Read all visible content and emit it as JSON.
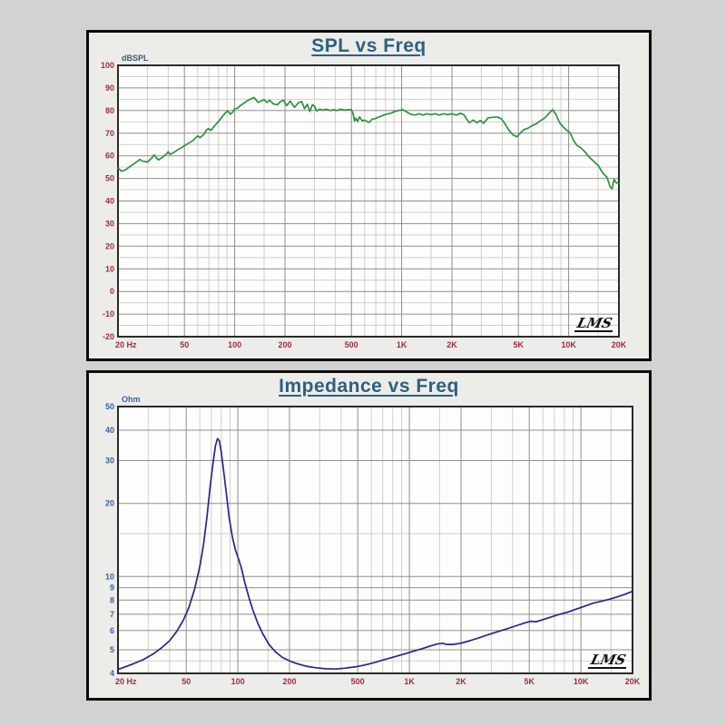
{
  "page": {
    "background_color": "#d2d2d2"
  },
  "chart_data": [
    {
      "type": "line",
      "title": "SPL vs Freq",
      "y_unit_label": "dBSPL",
      "watermark": "LMS",
      "x_scale": "log",
      "y_scale": "linear",
      "xlim": [
        20,
        20000
      ],
      "ylim": [
        -20,
        100
      ],
      "x_ticks": [
        [
          20,
          "20 Hz"
        ],
        [
          50,
          "50"
        ],
        [
          100,
          "100"
        ],
        [
          200,
          "200"
        ],
        [
          500,
          "500"
        ],
        [
          1000,
          "1K"
        ],
        [
          2000,
          "2K"
        ],
        [
          5000,
          "5K"
        ],
        [
          10000,
          "10K"
        ],
        [
          20000,
          "20K"
        ]
      ],
      "x_minor": [
        30,
        40,
        60,
        70,
        80,
        90,
        150,
        300,
        400,
        600,
        700,
        800,
        900,
        1500,
        3000,
        4000,
        6000,
        7000,
        8000,
        9000,
        15000
      ],
      "y_ticks": [
        100,
        90,
        80,
        70,
        60,
        50,
        40,
        30,
        20,
        10,
        0,
        -10,
        -20
      ],
      "y_minor": [
        95,
        85,
        75,
        65,
        55,
        45,
        35,
        25,
        15,
        5,
        -5,
        -15
      ],
      "grid": true,
      "legend": "none",
      "colors": {
        "title": "#2e6080",
        "x_tick": "#9b2c45",
        "y_tick": "#9b2c45",
        "y_unit": "#3a5a77",
        "curve": "#2f9140",
        "grid_major": "#8e8e8e",
        "grid_minor": "#cfcfcf",
        "plot_border": "#2b2b2b",
        "plot_bg": "#fdfdfb"
      },
      "series": [
        {
          "name": "SPL",
          "points": [
            [
              20,
              54.6
            ],
            [
              21,
              53.2
            ],
            [
              22,
              53.6
            ],
            [
              24,
              55.6
            ],
            [
              26,
              57.4
            ],
            [
              27,
              58.4
            ],
            [
              28,
              57.6
            ],
            [
              30,
              57.2
            ],
            [
              32,
              59.2
            ],
            [
              33,
              60.4
            ],
            [
              34,
              59.0
            ],
            [
              35,
              58.2
            ],
            [
              37,
              59.4
            ],
            [
              39,
              60.8
            ],
            [
              40,
              61.8
            ],
            [
              41,
              60.6
            ],
            [
              43,
              61.4
            ],
            [
              45,
              62.4
            ],
            [
              48,
              63.6
            ],
            [
              52,
              65.2
            ],
            [
              56,
              66.6
            ],
            [
              60,
              68.8
            ],
            [
              62,
              68.0
            ],
            [
              65,
              69.2
            ],
            [
              68,
              71.6
            ],
            [
              70,
              72.0
            ],
            [
              72,
              71.2
            ],
            [
              76,
              73.4
            ],
            [
              80,
              75.2
            ],
            [
              84,
              77.2
            ],
            [
              88,
              79.0
            ],
            [
              91,
              79.8
            ],
            [
              94,
              78.4
            ],
            [
              97,
              79.2
            ],
            [
              100,
              80.8
            ],
            [
              104,
              81.0
            ],
            [
              108,
              82.2
            ],
            [
              113,
              83.2
            ],
            [
              118,
              84.2
            ],
            [
              124,
              85.0
            ],
            [
              130,
              85.8
            ],
            [
              134,
              84.8
            ],
            [
              138,
              83.6
            ],
            [
              144,
              84.2
            ],
            [
              150,
              84.8
            ],
            [
              156,
              83.6
            ],
            [
              162,
              84.6
            ],
            [
              170,
              83.0
            ],
            [
              180,
              82.6
            ],
            [
              188,
              84.0
            ],
            [
              196,
              84.6
            ],
            [
              205,
              82.2
            ],
            [
              215,
              84.2
            ],
            [
              228,
              81.4
            ],
            [
              240,
              83.4
            ],
            [
              252,
              84.0
            ],
            [
              262,
              80.8
            ],
            [
              272,
              82.8
            ],
            [
              282,
              79.6
            ],
            [
              292,
              82.6
            ],
            [
              300,
              82.0
            ],
            [
              310,
              79.8
            ],
            [
              322,
              80.6
            ],
            [
              338,
              80.2
            ],
            [
              355,
              80.6
            ],
            [
              372,
              80.0
            ],
            [
              390,
              80.4
            ],
            [
              410,
              80.0
            ],
            [
              430,
              80.6
            ],
            [
              455,
              80.2
            ],
            [
              480,
              80.4
            ],
            [
              500,
              80.4
            ],
            [
              512,
              78.6
            ],
            [
              522,
              75.4
            ],
            [
              532,
              76.6
            ],
            [
              545,
              75.2
            ],
            [
              560,
              77.2
            ],
            [
              580,
              75.4
            ],
            [
              600,
              75.8
            ],
            [
              620,
              75.2
            ],
            [
              640,
              74.8
            ],
            [
              665,
              76.2
            ],
            [
              695,
              76.4
            ],
            [
              730,
              77.2
            ],
            [
              770,
              77.8
            ],
            [
              810,
              78.4
            ],
            [
              860,
              78.8
            ],
            [
              910,
              79.6
            ],
            [
              960,
              80.0
            ],
            [
              1010,
              80.4
            ],
            [
              1070,
              79.4
            ],
            [
              1130,
              78.4
            ],
            [
              1200,
              78.0
            ],
            [
              1270,
              78.6
            ],
            [
              1340,
              78.0
            ],
            [
              1420,
              78.6
            ],
            [
              1500,
              78.2
            ],
            [
              1590,
              78.6
            ],
            [
              1680,
              78.0
            ],
            [
              1780,
              78.6
            ],
            [
              1890,
              78.2
            ],
            [
              2000,
              78.6
            ],
            [
              2120,
              78.0
            ],
            [
              2250,
              78.8
            ],
            [
              2370,
              78.0
            ],
            [
              2450,
              76.2
            ],
            [
              2540,
              74.6
            ],
            [
              2680,
              75.8
            ],
            [
              2820,
              74.6
            ],
            [
              2960,
              75.6
            ],
            [
              3100,
              74.4
            ],
            [
              3300,
              76.8
            ],
            [
              3500,
              77.0
            ],
            [
              3720,
              77.2
            ],
            [
              3950,
              76.4
            ],
            [
              4150,
              74.2
            ],
            [
              4400,
              71.2
            ],
            [
              4650,
              69.2
            ],
            [
              4900,
              68.4
            ],
            [
              5150,
              70.2
            ],
            [
              5400,
              71.6
            ],
            [
              5700,
              72.2
            ],
            [
              6000,
              73.2
            ],
            [
              6400,
              74.2
            ],
            [
              6800,
              75.6
            ],
            [
              7200,
              76.8
            ],
            [
              7600,
              78.6
            ],
            [
              8000,
              80.4
            ],
            [
              8400,
              78.2
            ],
            [
              8800,
              74.8
            ],
            [
              9200,
              73.0
            ],
            [
              9700,
              71.4
            ],
            [
              10200,
              70.2
            ],
            [
              10700,
              66.8
            ],
            [
              11200,
              64.6
            ],
            [
              11800,
              63.6
            ],
            [
              12500,
              61.8
            ],
            [
              13300,
              59.4
            ],
            [
              14200,
              57.4
            ],
            [
              15000,
              55.8
            ],
            [
              16000,
              52.4
            ],
            [
              17000,
              50.4
            ],
            [
              17700,
              46.4
            ],
            [
              18200,
              45.4
            ],
            [
              18700,
              49.6
            ],
            [
              19300,
              48.0
            ],
            [
              20000,
              47.8
            ]
          ]
        }
      ]
    },
    {
      "type": "line",
      "title": "Impedance vs Freq",
      "y_unit_label": "Ohm",
      "watermark": "LMS",
      "x_scale": "log",
      "y_scale": "log",
      "xlim": [
        20,
        20000
      ],
      "ylim": [
        4,
        50
      ],
      "x_ticks": [
        [
          20,
          "20 Hz"
        ],
        [
          50,
          "50"
        ],
        [
          100,
          "100"
        ],
        [
          200,
          "200"
        ],
        [
          500,
          "500"
        ],
        [
          1000,
          "1K"
        ],
        [
          2000,
          "2K"
        ],
        [
          5000,
          "5K"
        ],
        [
          10000,
          "10K"
        ],
        [
          20000,
          "20K"
        ]
      ],
      "x_minor": [
        30,
        40,
        60,
        70,
        80,
        90,
        150,
        300,
        400,
        600,
        700,
        800,
        900,
        1500,
        3000,
        4000,
        6000,
        7000,
        8000,
        9000,
        15000
      ],
      "y_ticks": [
        50,
        40,
        30,
        20,
        10,
        9,
        8,
        7,
        6,
        5,
        4
      ],
      "y_minor": [
        4.5,
        15
      ],
      "grid": true,
      "legend": "none",
      "colors": {
        "title": "#2e6080",
        "x_tick": "#9b2c45",
        "y_tick": "#3a62a6",
        "y_unit": "#3a62a6",
        "curve": "#26278e",
        "grid_major": "#8e8e8e",
        "grid_minor": "#cfcfcf",
        "plot_border": "#2b2b2b",
        "plot_bg": "#fdfdfb"
      },
      "series": [
        {
          "name": "Impedance",
          "points": [
            [
              20,
              4.15
            ],
            [
              24,
              4.35
            ],
            [
              28,
              4.55
            ],
            [
              32,
              4.8
            ],
            [
              36,
              5.1
            ],
            [
              40,
              5.45
            ],
            [
              44,
              5.95
            ],
            [
              48,
              6.6
            ],
            [
              52,
              7.5
            ],
            [
              56,
              8.9
            ],
            [
              60,
              11.0
            ],
            [
              63,
              13.5
            ],
            [
              66,
              17.5
            ],
            [
              69,
              23.5
            ],
            [
              72,
              30.0
            ],
            [
              74,
              34.5
            ],
            [
              76,
              36.9
            ],
            [
              78,
              36.2
            ],
            [
              80,
              32.5
            ],
            [
              83,
              26.5
            ],
            [
              86,
              21.5
            ],
            [
              89,
              17.5
            ],
            [
              93,
              14.5
            ],
            [
              97,
              12.8
            ],
            [
              101,
              11.8
            ],
            [
              105,
              10.8
            ],
            [
              110,
              9.4
            ],
            [
              116,
              8.2
            ],
            [
              123,
              7.2
            ],
            [
              131,
              6.4
            ],
            [
              140,
              5.8
            ],
            [
              152,
              5.25
            ],
            [
              166,
              4.9
            ],
            [
              182,
              4.65
            ],
            [
              200,
              4.5
            ],
            [
              222,
              4.38
            ],
            [
              250,
              4.28
            ],
            [
              285,
              4.22
            ],
            [
              325,
              4.18
            ],
            [
              370,
              4.17
            ],
            [
              420,
              4.2
            ],
            [
              480,
              4.25
            ],
            [
              550,
              4.33
            ],
            [
              630,
              4.44
            ],
            [
              720,
              4.56
            ],
            [
              820,
              4.68
            ],
            [
              930,
              4.8
            ],
            [
              1050,
              4.93
            ],
            [
              1180,
              5.05
            ],
            [
              1320,
              5.18
            ],
            [
              1450,
              5.28
            ],
            [
              1550,
              5.32
            ],
            [
              1650,
              5.26
            ],
            [
              1800,
              5.26
            ],
            [
              2000,
              5.32
            ],
            [
              2250,
              5.45
            ],
            [
              2550,
              5.6
            ],
            [
              2900,
              5.78
            ],
            [
              3300,
              5.95
            ],
            [
              3700,
              6.1
            ],
            [
              4200,
              6.28
            ],
            [
              4700,
              6.45
            ],
            [
              5100,
              6.55
            ],
            [
              5500,
              6.52
            ],
            [
              6000,
              6.65
            ],
            [
              6700,
              6.82
            ],
            [
              7500,
              7.0
            ],
            [
              8400,
              7.15
            ],
            [
              9400,
              7.35
            ],
            [
              10500,
              7.55
            ],
            [
              11800,
              7.78
            ],
            [
              13000,
              7.9
            ],
            [
              14500,
              8.05
            ],
            [
              16000,
              8.22
            ],
            [
              18000,
              8.45
            ],
            [
              20000,
              8.7
            ]
          ]
        }
      ]
    }
  ]
}
